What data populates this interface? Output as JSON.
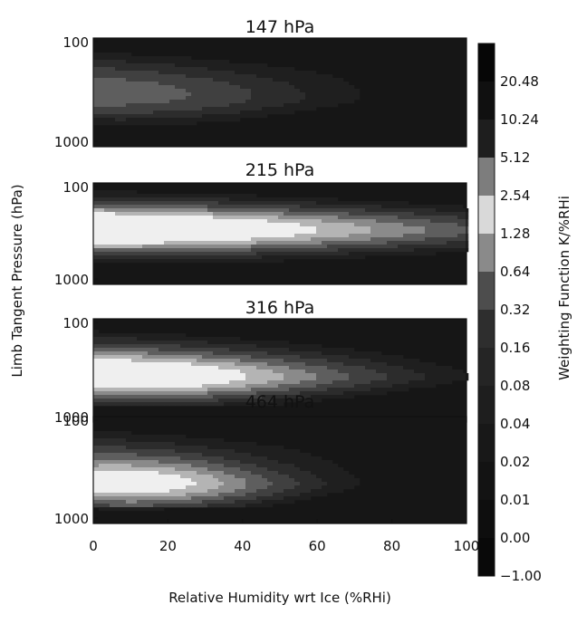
{
  "chart_data": {
    "type": "heatmap",
    "panels": [
      {
        "title": "147 hPa",
        "peak": {
          "rh": 8,
          "logp_frac": 0.55,
          "intensity": 0.35,
          "width": 10
        }
      },
      {
        "title": "215 hPa",
        "peak": {
          "rh": 4,
          "logp_frac": 0.45,
          "intensity": 1.0,
          "width": 20
        }
      },
      {
        "title": "316 hPa",
        "peak": {
          "rh": 8,
          "logp_frac": 0.55,
          "intensity": 1.0,
          "width": 12
        }
      },
      {
        "title": "464 hPa",
        "peak": {
          "rh": 10,
          "logp_frac": 0.62,
          "intensity": 0.9,
          "width": 8
        }
      }
    ],
    "xlabel": "Relative Humidity wrt Ice (%RHi)",
    "ylabel": "Limb Tangent Pressure (hPa)",
    "xlim": [
      0,
      100
    ],
    "x_ticks": [
      "0",
      "20",
      "40",
      "60",
      "80",
      "100"
    ],
    "x_tick_values": [
      0,
      20,
      40,
      60,
      80,
      100
    ],
    "y_ticks": [
      "100",
      "1000"
    ],
    "y_tick_values": [
      100,
      1000
    ],
    "colorbar": {
      "label": "Weighting Function K/%RHi",
      "levels": [
        "20.48",
        "10.24",
        "5.12",
        "2.54",
        "1.28",
        "0.64",
        "0.32",
        "0.16",
        "0.08",
        "0.04",
        "0.02",
        "0.01",
        "0.00",
        "−1.00"
      ],
      "colors": [
        "#060606",
        "#101010",
        "#1e1e1e",
        "#7d7d7d",
        "#d9d9d9",
        "#8a8a8a",
        "#4d4d4d",
        "#2e2e2e",
        "#252525",
        "#1e1e1e",
        "#181818",
        "#131313",
        "#0e0e0e",
        "#090909"
      ]
    },
    "grid": false,
    "legend": "colorbar-right"
  }
}
